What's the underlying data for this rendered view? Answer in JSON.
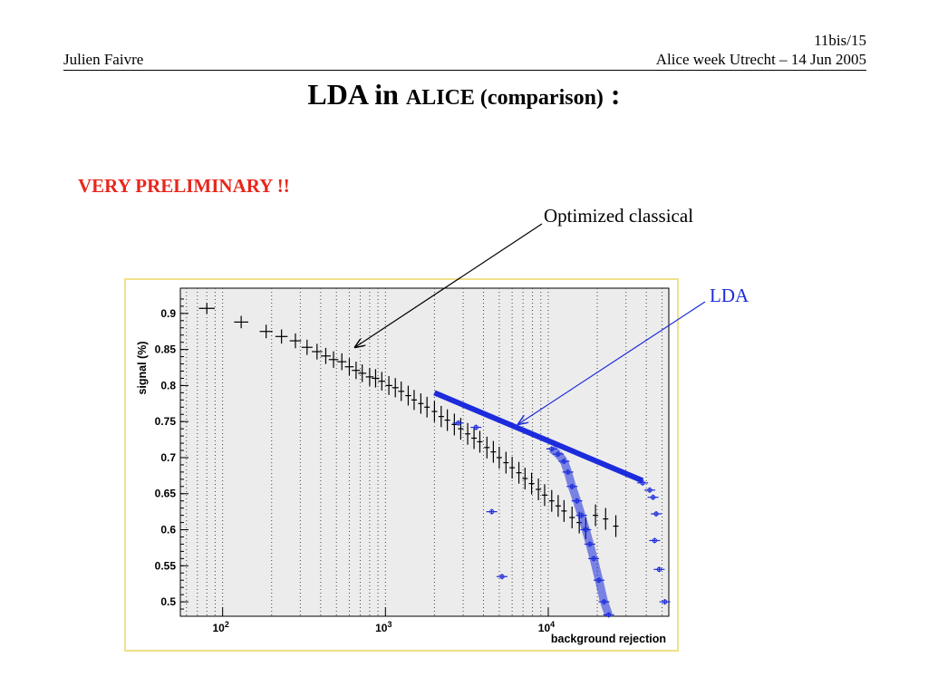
{
  "header": {
    "author": "Julien Faivre",
    "page": "11bis/15",
    "event": "Alice week Utrecht  –  14 Jun 2005"
  },
  "title": {
    "part1": "LDA in ",
    "part2": "ALICE (comparison)",
    "part3": " :"
  },
  "warning": "VERY PRELIMINARY !!",
  "annotations": {
    "classical": "Optimized classical",
    "lda": "LDA"
  },
  "colors": {
    "warning": "#e8261c",
    "lda": "#1c2bdc",
    "classical": "#000000",
    "frame_border": "#efe08a",
    "plot_bg": "#ececec"
  },
  "chart_data": {
    "type": "scatter",
    "xlabel": "background rejection",
    "ylabel": "signal (%)",
    "xscale": "log",
    "xlim": [
      55,
      55000
    ],
    "ylim": [
      0.48,
      0.935
    ],
    "x_ticks": [
      100,
      1000,
      10000
    ],
    "x_tick_labels": [
      {
        "base": "10",
        "exp": "2"
      },
      {
        "base": "10",
        "exp": "3"
      },
      {
        "base": "10",
        "exp": "4"
      }
    ],
    "y_ticks": [
      0.5,
      0.55,
      0.6,
      0.65,
      0.7,
      0.75,
      0.8,
      0.85,
      0.9
    ],
    "y_tick_labels": [
      "0.5",
      "0.55",
      "0.6",
      "0.65",
      "0.7",
      "0.75",
      "0.8",
      "0.85",
      "0.9"
    ],
    "grid": "vertical dotted",
    "series": [
      {
        "color": "#000000",
        "points": [
          [
            80,
            0.907
          ],
          [
            130,
            0.888
          ],
          [
            185,
            0.875
          ],
          [
            230,
            0.868
          ],
          [
            280,
            0.862
          ],
          [
            330,
            0.853
          ],
          [
            380,
            0.847
          ],
          [
            430,
            0.841
          ],
          [
            480,
            0.836
          ],
          [
            540,
            0.833
          ],
          [
            600,
            0.826
          ],
          [
            660,
            0.821
          ],
          [
            720,
            0.817
          ],
          [
            800,
            0.812
          ],
          [
            870,
            0.81
          ],
          [
            950,
            0.806
          ],
          [
            1050,
            0.8
          ],
          [
            1150,
            0.797
          ],
          [
            1250,
            0.792
          ],
          [
            1380,
            0.786
          ],
          [
            1500,
            0.78
          ],
          [
            1650,
            0.775
          ],
          [
            1800,
            0.77
          ],
          [
            2000,
            0.764
          ],
          [
            2200,
            0.757
          ],
          [
            2400,
            0.752
          ],
          [
            2650,
            0.746
          ],
          [
            2900,
            0.74
          ],
          [
            3200,
            0.733
          ],
          [
            3500,
            0.727
          ],
          [
            3800,
            0.722
          ],
          [
            4200,
            0.714
          ],
          [
            4600,
            0.708
          ],
          [
            5000,
            0.7
          ],
          [
            5500,
            0.693
          ],
          [
            6000,
            0.686
          ],
          [
            6600,
            0.679
          ],
          [
            7200,
            0.671
          ],
          [
            7900,
            0.664
          ],
          [
            8700,
            0.656
          ],
          [
            9500,
            0.648
          ],
          [
            10500,
            0.64
          ],
          [
            11500,
            0.633
          ],
          [
            12500,
            0.626
          ],
          [
            14000,
            0.617
          ],
          [
            15500,
            0.61
          ],
          [
            17000,
            0.602
          ],
          [
            19500,
            0.62
          ],
          [
            22500,
            0.615
          ],
          [
            26000,
            0.605
          ]
        ]
      },
      {
        "color": "#1c2bdc",
        "points": [
          [
            2800,
            0.748
          ],
          [
            3600,
            0.742
          ],
          [
            4500,
            0.625
          ],
          [
            5200,
            0.535
          ],
          [
            10500,
            0.712
          ],
          [
            11500,
            0.705
          ],
          [
            12500,
            0.695
          ],
          [
            13200,
            0.68
          ],
          [
            14000,
            0.66
          ],
          [
            15000,
            0.64
          ],
          [
            16000,
            0.62
          ],
          [
            17000,
            0.6
          ],
          [
            18000,
            0.58
          ],
          [
            19000,
            0.56
          ],
          [
            20500,
            0.53
          ],
          [
            22000,
            0.5
          ],
          [
            23500,
            0.482
          ],
          [
            38000,
            0.665
          ],
          [
            42000,
            0.655
          ],
          [
            44000,
            0.645
          ],
          [
            46000,
            0.622
          ],
          [
            45000,
            0.585
          ],
          [
            48000,
            0.545
          ],
          [
            52000,
            0.5
          ]
        ]
      }
    ],
    "lda_line": [
      [
        2000,
        0.79
      ],
      [
        38000,
        0.668
      ]
    ]
  }
}
